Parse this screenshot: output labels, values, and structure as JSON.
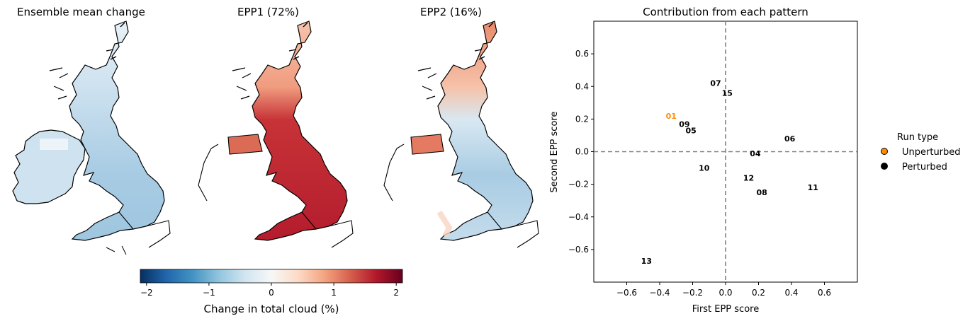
{
  "maps": [
    {
      "title": "Ensemble mean change",
      "scheme": "blue"
    },
    {
      "title": "EPP1 (72%)",
      "scheme": "red"
    },
    {
      "title": "EPP2 (16%)",
      "scheme": "mixed"
    }
  ],
  "colorbar": {
    "label": "Change in total cloud (%)",
    "ticks": [
      "−2",
      "−1",
      "0",
      "1",
      "2"
    ],
    "range": [
      -2.1,
      2.1
    ],
    "colormap": "RdBu_r"
  },
  "chart_data": {
    "type": "scatter",
    "title": "Contribution from each pattern",
    "xlabel": "First EPP score",
    "ylabel": "Second EPP score",
    "xlim": [
      -0.8,
      0.8
    ],
    "ylim": [
      -0.8,
      0.8
    ],
    "xticks": [
      "−0.6",
      "−0.4",
      "−0.2",
      "0.0",
      "0.2",
      "0.4",
      "0.6"
    ],
    "yticks": [
      "−0.6",
      "−0.4",
      "−0.2",
      "0.0",
      "0.2",
      "0.4",
      "0.6"
    ],
    "reference_lines": {
      "x": 0.0,
      "y": 0.0,
      "style": "dashed"
    },
    "points": [
      {
        "label": "01",
        "x": -0.33,
        "y": 0.22,
        "type": "Unperturbed"
      },
      {
        "label": "04",
        "x": 0.18,
        "y": -0.01,
        "type": "Perturbed"
      },
      {
        "label": "05",
        "x": -0.21,
        "y": 0.13,
        "type": "Perturbed"
      },
      {
        "label": "06",
        "x": 0.39,
        "y": 0.08,
        "type": "Perturbed"
      },
      {
        "label": "07",
        "x": -0.06,
        "y": 0.42,
        "type": "Perturbed"
      },
      {
        "label": "08",
        "x": 0.22,
        "y": -0.25,
        "type": "Perturbed"
      },
      {
        "label": "09",
        "x": -0.25,
        "y": 0.17,
        "type": "Perturbed"
      },
      {
        "label": "10",
        "x": -0.13,
        "y": -0.1,
        "type": "Perturbed"
      },
      {
        "label": "11",
        "x": 0.53,
        "y": -0.22,
        "type": "Perturbed"
      },
      {
        "label": "12",
        "x": 0.14,
        "y": -0.16,
        "type": "Perturbed"
      },
      {
        "label": "13",
        "x": -0.48,
        "y": -0.67,
        "type": "Perturbed"
      },
      {
        "label": "15",
        "x": 0.01,
        "y": 0.36,
        "type": "Perturbed"
      }
    ],
    "legend": {
      "title": "Run type",
      "placement": "outside-right",
      "entries": [
        {
          "name": "Unperturbed",
          "color": "#ff8c00"
        },
        {
          "name": "Perturbed",
          "color": "#000000"
        }
      ]
    },
    "colors": {
      "unperturbed": "#ff8c00",
      "perturbed": "#000000"
    }
  }
}
